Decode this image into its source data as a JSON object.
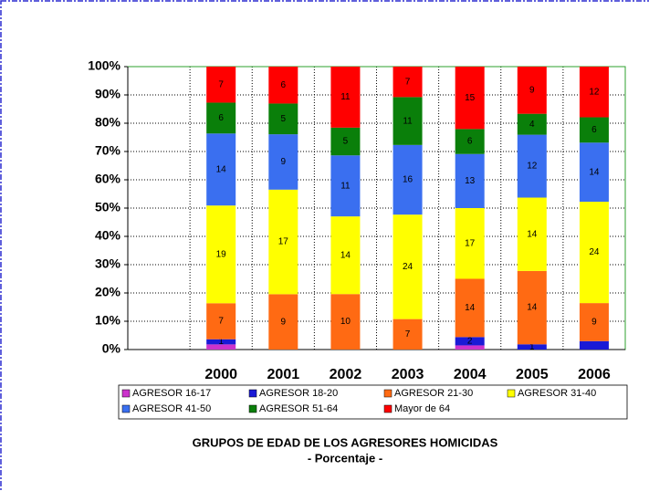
{
  "chart_data": {
    "type": "bar",
    "stacked": true,
    "percent": true,
    "title": "GRUPOS DE EDAD DE LOS AGRESORES HOMICIDAS",
    "subtitle": "- Porcentaje -",
    "categories": [
      null,
      "2000",
      "2001",
      "2002",
      "2003",
      "2004",
      "2005",
      "2006"
    ],
    "series": [
      {
        "name": "AGRESOR 16-17",
        "color": "#cc33cc",
        "values": [
          null,
          1,
          0,
          0,
          0,
          1,
          0,
          0
        ],
        "value_labels": [
          null,
          null,
          null,
          null,
          null,
          null,
          null,
          null
        ]
      },
      {
        "name": "AGRESOR 18-20",
        "color": "#1a1ad6",
        "values": [
          null,
          1,
          0,
          0,
          0,
          2,
          1,
          2
        ],
        "value_labels": [
          null,
          "1",
          null,
          null,
          null,
          "2",
          "1",
          null
        ]
      },
      {
        "name": "AGRESOR 21-30",
        "color": "#ff6a13",
        "values": [
          null,
          7,
          9,
          10,
          7,
          14,
          14,
          9
        ]
      },
      {
        "name": "AGRESOR 31-40",
        "color": "#ffff00",
        "values": [
          null,
          19,
          17,
          14,
          24,
          17,
          14,
          24
        ]
      },
      {
        "name": "AGRESOR 41-50",
        "color": "#3a6ff0",
        "values": [
          null,
          14,
          9,
          11,
          16,
          13,
          12,
          14
        ]
      },
      {
        "name": "AGRESOR 51-64",
        "color": "#0a7f0a",
        "values": [
          null,
          6,
          5,
          5,
          11,
          6,
          4,
          6
        ]
      },
      {
        "name": "Mayor de 64",
        "color": "#ff0000",
        "values": [
          null,
          7,
          6,
          11,
          7,
          15,
          9,
          12
        ]
      }
    ],
    "ylim": [
      0,
      100
    ],
    "yticks": [
      {
        "value": 0,
        "label": "0%"
      },
      {
        "value": 10,
        "label": "10%"
      },
      {
        "value": 20,
        "label": "20%"
      },
      {
        "value": 30,
        "label": "30%"
      },
      {
        "value": 40,
        "label": "40%"
      },
      {
        "value": 50,
        "label": "50%"
      },
      {
        "value": 60,
        "label": "60%"
      },
      {
        "value": 70,
        "label": "70%"
      },
      {
        "value": 80,
        "label": "80%"
      },
      {
        "value": 90,
        "label": "90%"
      },
      {
        "value": 100,
        "label": "100%"
      }
    ],
    "grid": true
  }
}
